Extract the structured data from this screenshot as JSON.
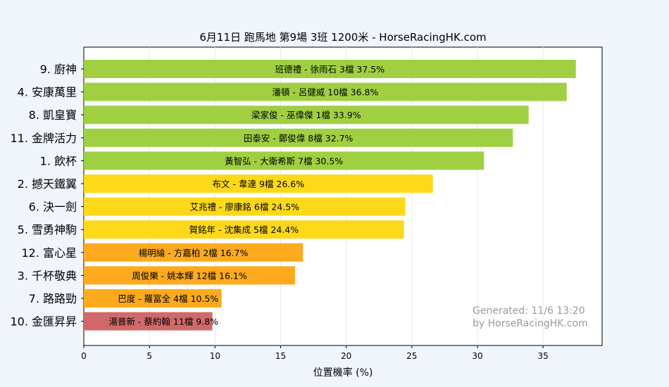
{
  "chart_data": {
    "type": "bar",
    "orientation": "horizontal",
    "title": "6月11日  跑馬地  第9場  3班  1200米 - HorseRacingHK.com",
    "xlabel": "位置機率 (%)",
    "ylabel": "",
    "xlim": [
      0,
      39.5
    ],
    "xticks": [
      0,
      5,
      10,
      15,
      20,
      25,
      30,
      35
    ],
    "grid": "vertical",
    "categories": [
      "9. 廚神",
      "4. 安康萬里",
      "8. 凱皇寶",
      "11. 金牌活力",
      "1. 飲杯",
      "2. 撼天鐵翼",
      "6. 決一劍",
      "5. 雪勇神駒",
      "12. 富心星",
      "3. 千杯敬典",
      "7. 路路勁",
      "10. 金匯昇昇"
    ],
    "values": [
      37.5,
      36.8,
      33.9,
      32.7,
      30.5,
      26.6,
      24.5,
      24.4,
      16.7,
      16.1,
      10.5,
      9.8
    ],
    "bar_labels": [
      "班德禮 - 徐雨石 3檔  37.5%",
      "潘頓 - 呂健威 10檔  36.8%",
      "梁家俊 - 巫偉傑 1檔  33.9%",
      "田泰安 - 鄭俊偉 8檔  32.7%",
      "黃智弘 - 大衛希斯 7檔  30.5%",
      "布文 - 韋達 9檔  26.6%",
      "艾兆禮 - 廖康銘 6檔  24.5%",
      "賀銘年 - 沈集成 5檔  24.4%",
      "楊明綸 - 方嘉柏 2檔  16.7%",
      "周俊樂 - 姚本輝 12檔  16.1%",
      "巴度 - 羅富全 4檔  10.5%",
      "湯普新 - 蔡約翰 11檔  9.8%"
    ],
    "bar_colors": [
      "#a0d042",
      "#a0d042",
      "#a0d042",
      "#a0d042",
      "#a0d042",
      "#fdd91a",
      "#fdd91a",
      "#fdd91a",
      "#fdaa1e",
      "#fdaa1e",
      "#fdaa1e",
      "#d06a6a"
    ]
  },
  "watermark": {
    "line1": "Generated: 11/6 13:20",
    "line2": "by HorseRacingHK.com"
  }
}
